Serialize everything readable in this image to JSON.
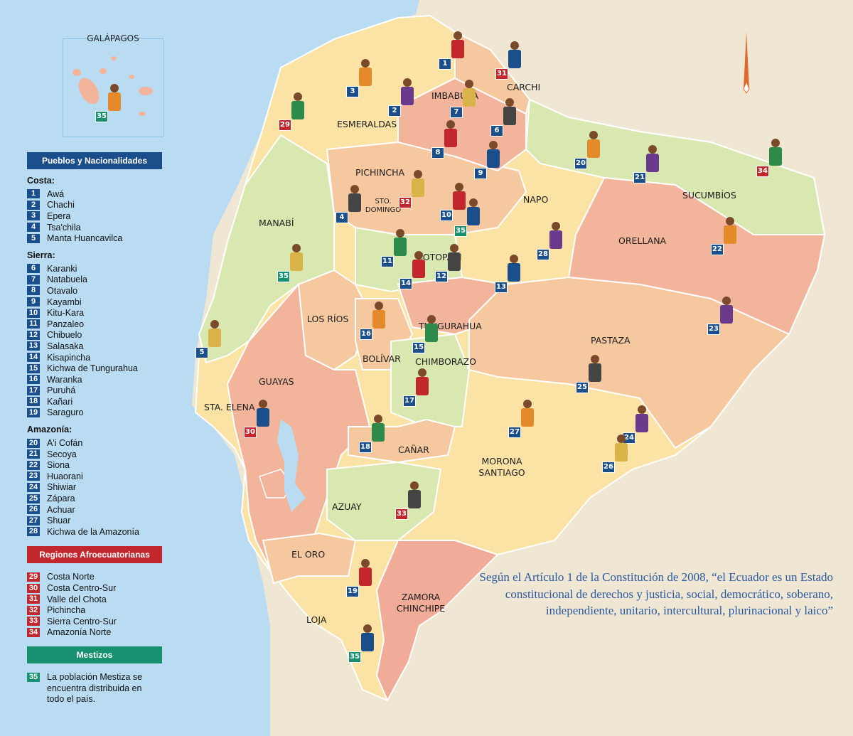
{
  "colors": {
    "ocean": "#b9dcf3",
    "land_outside": "#efe6d4",
    "pueblos_blue": "#1b4f8c",
    "afro_red": "#c1272d",
    "mestizo_green": "#17916f"
  },
  "inset": {
    "title": "GALÁPAGOS",
    "badge": "35"
  },
  "provinces": [
    "CARCHI",
    "IMBABURA",
    "ESMERALDAS",
    "PICHINCHA",
    "STO. DOMINGO",
    "SUCUMBÍOS",
    "NAPO",
    "ORELLANA",
    "MANABÍ",
    "COTOPAXI",
    "LOS RÍOS",
    "TUNGURAHUA",
    "BOLÍVAR",
    "CHIMBORAZO",
    "PASTAZA",
    "GUAYAS",
    "STA. ELENA",
    "CAÑAR",
    "MORONA SANTIAGO",
    "AZUAY",
    "EL ORO",
    "ZAMORA CHINCHIPE",
    "LOJA"
  ],
  "legend": {
    "pueblos_title": "Pueblos y Nacionalidades",
    "groups": [
      {
        "label": "Costa:",
        "items": [
          {
            "n": "1",
            "name": "Awá"
          },
          {
            "n": "2",
            "name": "Chachi"
          },
          {
            "n": "3",
            "name": "Epera"
          },
          {
            "n": "4",
            "name": "Tsa'chila"
          },
          {
            "n": "5",
            "name": "Manta Huancavilca"
          }
        ]
      },
      {
        "label": "Sierra:",
        "items": [
          {
            "n": "6",
            "name": "Karanki"
          },
          {
            "n": "7",
            "name": "Natabuela"
          },
          {
            "n": "8",
            "name": "Otavalo"
          },
          {
            "n": "9",
            "name": "Kayambi"
          },
          {
            "n": "10",
            "name": "Kitu-Kara"
          },
          {
            "n": "11",
            "name": "Panzaleo"
          },
          {
            "n": "12",
            "name": "Chibuelo"
          },
          {
            "n": "13",
            "name": "Salasaka"
          },
          {
            "n": "14",
            "name": "Kisapincha"
          },
          {
            "n": "15",
            "name": "Kichwa de Tungurahua"
          },
          {
            "n": "16",
            "name": "Waranka"
          },
          {
            "n": "17",
            "name": "Puruhá"
          },
          {
            "n": "18",
            "name": "Kañari"
          },
          {
            "n": "19",
            "name": "Saraguro"
          }
        ]
      },
      {
        "label": "Amazonía:",
        "items": [
          {
            "n": "20",
            "name": "A'i Cofán"
          },
          {
            "n": "21",
            "name": "Secoya"
          },
          {
            "n": "22",
            "name": "Siona"
          },
          {
            "n": "23",
            "name": "Huaorani"
          },
          {
            "n": "24",
            "name": "Shiwiar"
          },
          {
            "n": "25",
            "name": "Zápara"
          },
          {
            "n": "26",
            "name": "Achuar"
          },
          {
            "n": "27",
            "name": "Shuar"
          },
          {
            "n": "28",
            "name": "Kichwa de la Amazonía"
          }
        ]
      }
    ],
    "afro_title": "Regiones Afroecuatorianas",
    "afro_items": [
      {
        "n": "29",
        "name": "Costa Norte"
      },
      {
        "n": "30",
        "name": "Costa Centro-Sur"
      },
      {
        "n": "31",
        "name": "Valle del Chota"
      },
      {
        "n": "32",
        "name": "Pichincha"
      },
      {
        "n": "33",
        "name": "Sierra Centro-Sur"
      },
      {
        "n": "34",
        "name": "Amazonía Norte"
      }
    ],
    "mestizo_title": "Mestizos",
    "mestizo_item": {
      "n": "35",
      "name": "La población Mestiza se encuentra distribuida en todo el país."
    }
  },
  "quote": "Según el Artículo 1 de la Constitución de 2008, “el Ecuador es un Estado constitucional de derechos y justicia, social, democrático, soberano, independiente, unitario, intercultural, plurinacional y laico”"
}
